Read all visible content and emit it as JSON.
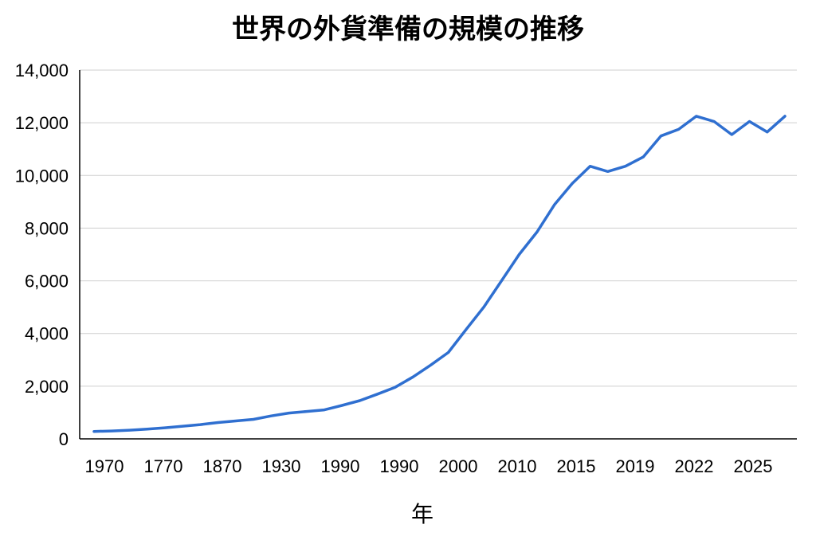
{
  "chart_data": {
    "type": "line",
    "title": "世界の外貨準備の規模の推移",
    "xlabel": "年",
    "ylabel": "",
    "ylim": [
      0,
      14000
    ],
    "yticks": [
      0,
      2000,
      4000,
      6000,
      8000,
      10000,
      12000,
      14000
    ],
    "ytick_labels": [
      "0",
      "2,000",
      "4,000",
      "6,000",
      "8,000",
      "10,000",
      "12,000",
      "14,000"
    ],
    "xtick_labels": [
      "1970",
      "1770",
      "1870",
      "1930",
      "1990",
      "1990",
      "2000",
      "2010",
      "2015",
      "2019",
      "2022",
      "2025"
    ],
    "grid": true,
    "legend": "none",
    "colors": {
      "series": "#2f6fd0",
      "grid": "#cfcfcf",
      "axis": "#000000"
    },
    "series": [
      {
        "values": [
          280,
          300,
          330,
          370,
          420,
          480,
          540,
          620,
          680,
          740,
          870,
          980,
          1040,
          1100,
          1270,
          1450,
          1700,
          1960,
          2350,
          2800,
          3280,
          4150,
          5000,
          6000,
          7000,
          7850,
          8900,
          9700,
          10350,
          10150,
          10350,
          10700,
          11500,
          11750,
          12250,
          12050,
          11550,
          12050,
          11650,
          12250
        ]
      }
    ]
  }
}
